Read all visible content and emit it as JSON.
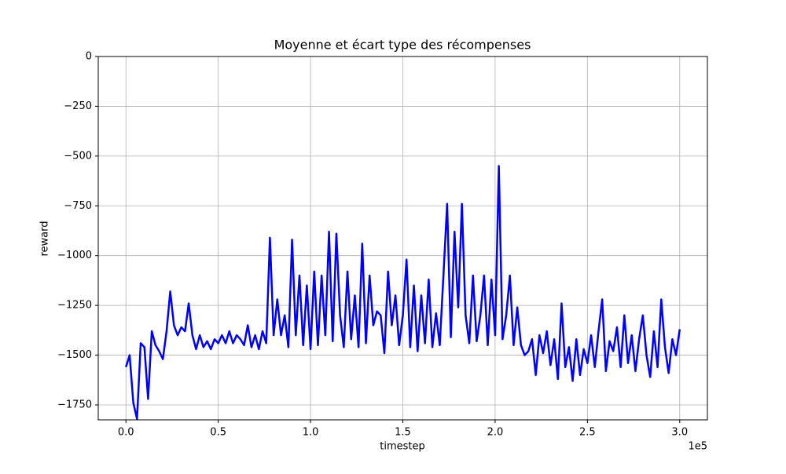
{
  "chart_data": {
    "type": "line",
    "title": "Moyenne et écart type des récompenses",
    "x_label": "timestep",
    "y_label": "reward",
    "x_offset_label": "1e5",
    "xlim": [
      -15000,
      315000
    ],
    "ylim": [
      -1825,
      0
    ],
    "xticks": [
      {
        "value": 0,
        "label": "0.0"
      },
      {
        "value": 50000,
        "label": "0.5"
      },
      {
        "value": 100000,
        "label": "1.0"
      },
      {
        "value": 150000,
        "label": "1.5"
      },
      {
        "value": 200000,
        "label": "2.0"
      },
      {
        "value": 250000,
        "label": "2.5"
      },
      {
        "value": 300000,
        "label": "3.0"
      }
    ],
    "yticks": [
      0,
      {
        "value": -250,
        "label": "−250"
      },
      {
        "value": -500,
        "label": "−500"
      },
      {
        "value": -750,
        "label": "−750"
      },
      {
        "value": -1000,
        "label": "−1000"
      },
      {
        "value": -1250,
        "label": "−1250"
      },
      {
        "value": -1500,
        "label": "−1500"
      },
      {
        "value": -1750,
        "label": "−1750"
      }
    ],
    "grid": true,
    "x": [
      0,
      2000,
      4000,
      6000,
      8000,
      10000,
      12000,
      14000,
      16000,
      18000,
      20000,
      22000,
      24000,
      26000,
      28000,
      30000,
      32000,
      34000,
      36000,
      38000,
      40000,
      42000,
      44000,
      46000,
      48000,
      50000,
      52000,
      54000,
      56000,
      58000,
      60000,
      62000,
      64000,
      66000,
      68000,
      70000,
      72000,
      74000,
      76000,
      78000,
      80000,
      82000,
      84000,
      86000,
      88000,
      90000,
      92000,
      94000,
      96000,
      98000,
      100000,
      102000,
      104000,
      106000,
      108000,
      110000,
      112000,
      114000,
      116000,
      118000,
      120000,
      122000,
      124000,
      126000,
      128000,
      130000,
      132000,
      134000,
      136000,
      138000,
      140000,
      142000,
      144000,
      146000,
      148000,
      150000,
      152000,
      154000,
      156000,
      158000,
      160000,
      162000,
      164000,
      166000,
      168000,
      170000,
      172000,
      174000,
      176000,
      178000,
      180000,
      182000,
      184000,
      186000,
      188000,
      190000,
      192000,
      194000,
      196000,
      198000,
      200000,
      202000,
      204000,
      206000,
      208000,
      210000,
      212000,
      214000,
      216000,
      218000,
      220000,
      222000,
      224000,
      226000,
      228000,
      230000,
      232000,
      234000,
      236000,
      238000,
      240000,
      242000,
      244000,
      246000,
      248000,
      250000,
      252000,
      254000,
      256000,
      258000,
      260000,
      262000,
      264000,
      266000,
      268000,
      270000,
      272000,
      274000,
      276000,
      278000,
      280000,
      282000,
      284000,
      286000,
      288000,
      290000,
      292000,
      294000,
      296000,
      298000,
      300000
    ],
    "series": [
      {
        "color": "#0000ff",
        "values": [
          -1560,
          -1500,
          -1740,
          -1820,
          -1440,
          -1460,
          -1720,
          -1380,
          -1450,
          -1480,
          -1520,
          -1380,
          -1180,
          -1350,
          -1400,
          -1360,
          -1380,
          -1240,
          -1400,
          -1470,
          -1400,
          -1460,
          -1430,
          -1470,
          -1420,
          -1440,
          -1400,
          -1440,
          -1380,
          -1440,
          -1400,
          -1420,
          -1450,
          -1350,
          -1460,
          -1400,
          -1470,
          -1380,
          -1440,
          -910,
          -1400,
          -1220,
          -1400,
          -1300,
          -1460,
          -920,
          -1400,
          -1100,
          -1450,
          -1150,
          -1470,
          -1080,
          -1450,
          -1100,
          -1400,
          -880,
          -1430,
          -890,
          -1300,
          -1460,
          -1080,
          -1420,
          -1200,
          -1460,
          -940,
          -1440,
          -1100,
          -1350,
          -1280,
          -1300,
          -1490,
          -1080,
          -1350,
          -1200,
          -1450,
          -1300,
          -1020,
          -1460,
          -1150,
          -1480,
          -1200,
          -1440,
          -1120,
          -1460,
          -1290,
          -1450,
          -1100,
          -740,
          -1410,
          -880,
          -1260,
          -740,
          -1300,
          -1440,
          -1100,
          -1430,
          -1300,
          -1100,
          -1450,
          -1120,
          -1400,
          -550,
          -1420,
          -1300,
          -1100,
          -1450,
          -1260,
          -1450,
          -1500,
          -1480,
          -1420,
          -1600,
          -1400,
          -1490,
          -1380,
          -1550,
          -1420,
          -1620,
          -1240,
          -1560,
          -1460,
          -1630,
          -1420,
          -1600,
          -1470,
          -1540,
          -1400,
          -1560,
          -1380,
          -1220,
          -1580,
          -1430,
          -1480,
          -1360,
          -1560,
          -1300,
          -1540,
          -1400,
          -1580,
          -1420,
          -1300,
          -1500,
          -1610,
          -1380,
          -1560,
          -1220,
          -1460,
          -1590,
          -1420,
          -1500,
          -1370
        ]
      }
    ]
  }
}
